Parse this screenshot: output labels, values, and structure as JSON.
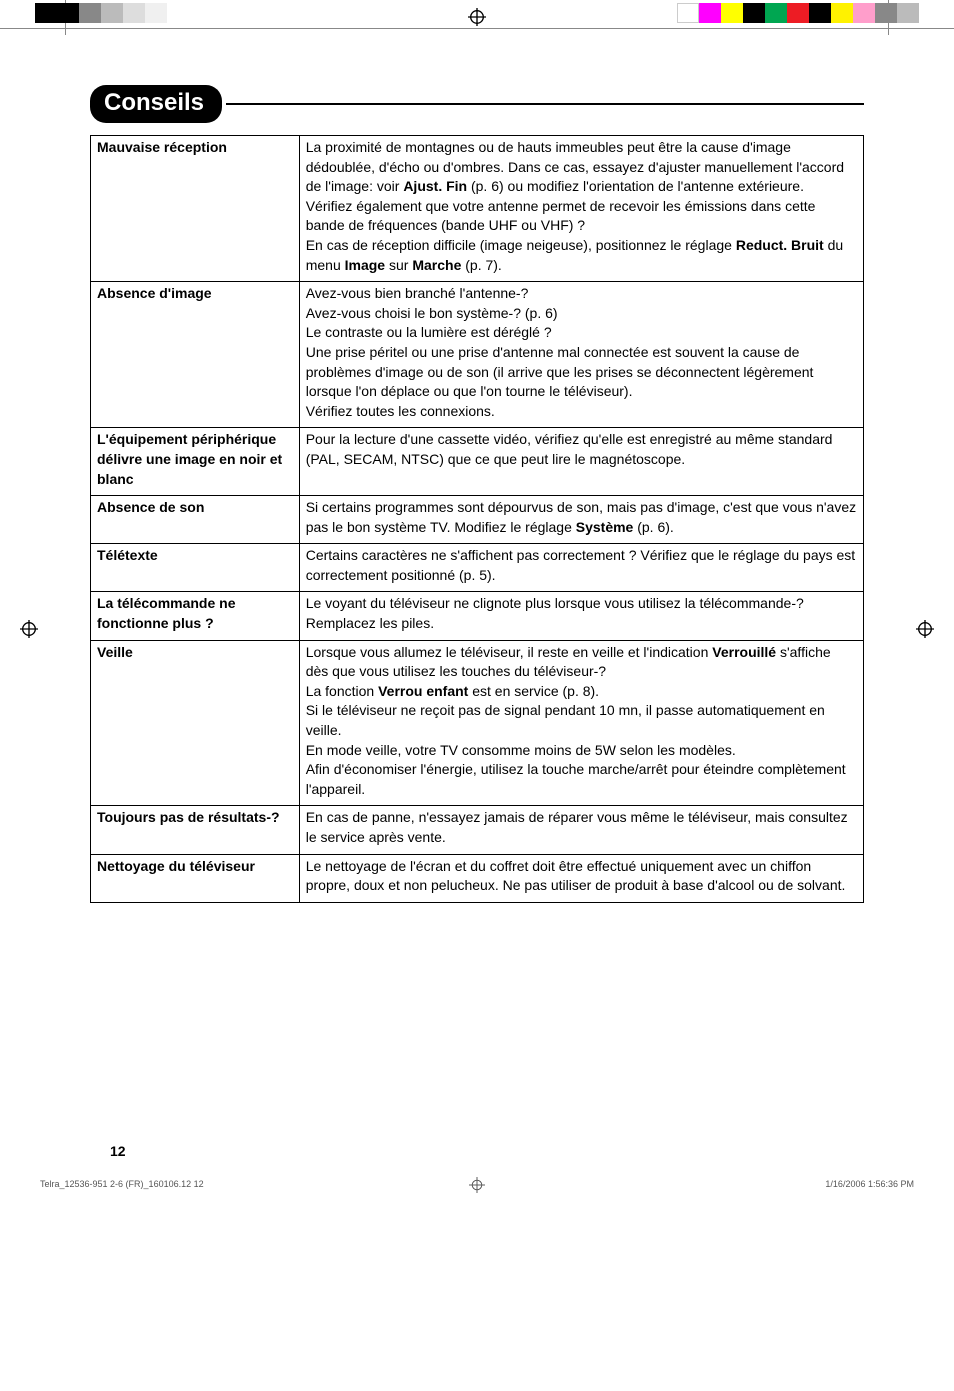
{
  "printMarks": {
    "topLeftColors": [
      "#000000",
      "#000000",
      "#888888",
      "#bbbbbb",
      "#dddddd",
      "#f0f0f0"
    ],
    "topRightColors": [
      "#ffffff",
      "#ff00ff",
      "#ffff00",
      "#000000",
      "#00a651",
      "#ed1c24",
      "#000000",
      "#fff200",
      "#ff9ecb",
      "#888888",
      "#bbbbbb"
    ],
    "registrationColor": "#000000"
  },
  "section": {
    "title": "Conseils"
  },
  "rows": [
    {
      "label": "Mauvaise réception",
      "content": "La proximité de montagnes ou de hauts immeubles peut être la cause d'image dédoublée, d'écho ou d'ombres. Dans ce cas, essayez d'ajuster manuellement l'accord de l'image: voir <b>Ajust. Fin</b> (p. 6) ou modifiez l'orientation de l'antenne extérieure.<br>Vérifiez également que votre antenne permet de recevoir les émissions dans cette bande de fréquences (bande UHF ou VHF) ?<br>En cas de réception difficile (image neigeuse), positionnez le réglage <b>Reduct. Bruit</b> du menu <b>Image</b> sur <b>Marche</b> (p. 7)."
    },
    {
      "label": "Absence d'image",
      "content": "Avez-vous bien branché l'antenne-?<br>Avez-vous choisi le bon système-? (p. 6)<br>Le contraste ou la lumière est déréglé ?<br>Une prise péritel ou une prise d'antenne mal connectée est souvent la cause de problèmes d'image ou de son (il arrive que les prises se déconnectent légèrement lorsque l'on déplace ou que l'on tourne le téléviseur).<br>Vérifiez toutes les connexions."
    },
    {
      "label": "L'équipement périphérique délivre une image en noir et blanc",
      "content": "Pour la lecture d'une cassette vidéo, vérifiez qu'elle est enregistré au même standard (PAL, SECAM, NTSC) que ce que peut lire le magnétoscope."
    },
    {
      "label": "Absence de son",
      "content": "Si certains programmes sont dépourvus de son, mais pas d'image, c'est que vous n'avez pas le bon système TV. Modifiez le réglage <b>Système</b> (p. 6)."
    },
    {
      "label": "Télétexte",
      "content": "Certains caractères ne s'affichent pas correctement ? Vérifiez que le réglage du pays est correctement positionné (p. 5)."
    },
    {
      "label": "La télécommande ne fonctionne plus ?",
      "content": "Le voyant du téléviseur ne clignote plus lorsque vous utilisez la télécommande-? Remplacez les piles."
    },
    {
      "label": "Veille",
      "content": "Lorsque vous allumez le téléviseur, il reste en veille et l'indication <b>Verrouillé</b> s'affiche dès que vous utilisez les touches du téléviseur-?<br>La fonction <b>Verrou enfant</b> est en service (p. 8).<br>Si le téléviseur ne reçoit pas de signal pendant 10 mn, il passe automatiquement en veille.<br>En mode veille, votre TV consomme moins de 5W selon les modèles.<br>Afin d'économiser l'énergie, utilisez la touche marche/arrêt pour éteindre complètement l'appareil."
    },
    {
      "label": "Toujours pas de résultats-?",
      "content": "En cas de panne, n'essayez jamais de réparer vous même le téléviseur, mais consultez le service après vente."
    },
    {
      "label": "Nettoyage du téléviseur",
      "content": "Le nettoyage de l'écran et du coffret doit être effectué uniquement avec un chiffon propre, doux et non pelucheux. Ne pas utiliser de produit à base d'alcool ou de solvant."
    }
  ],
  "pageNumber": "12",
  "footer": {
    "left": "Telra_12536-951 2-6 (FR)_160106.12   12",
    "right": "1/16/2006   1:56:36 PM"
  }
}
